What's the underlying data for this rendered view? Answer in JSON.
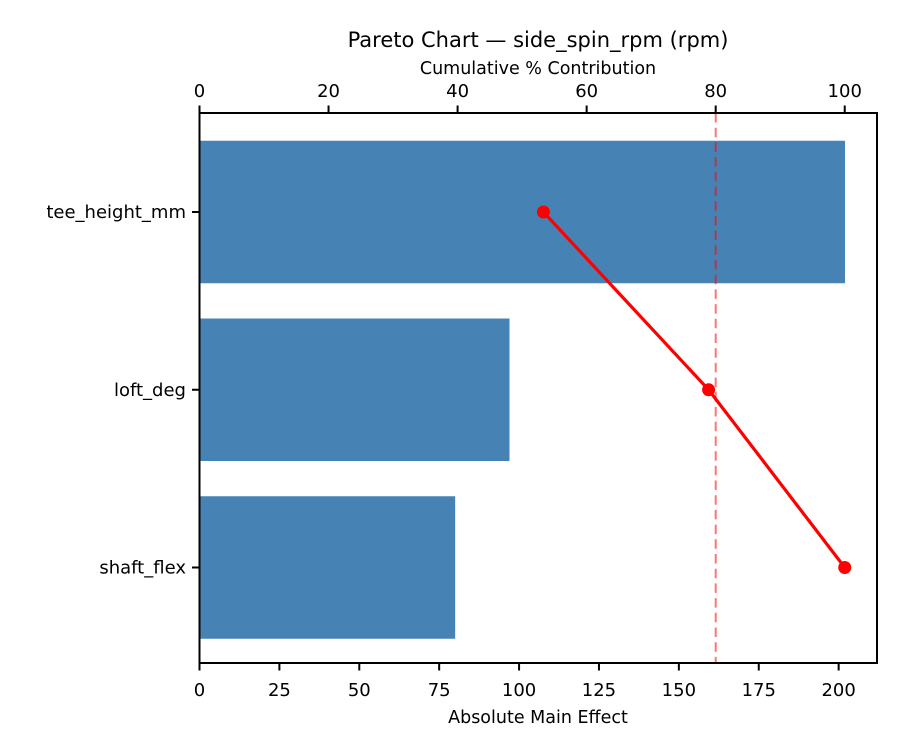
{
  "window": {
    "title": "Pareto Chart — side_spin_rpm (rpm)"
  },
  "colors": {
    "bar": "#4682B4",
    "cumulative_line": "#FF0000",
    "threshold_line": "#FF0000",
    "threshold_opacity": 0.55,
    "spine": "#000000",
    "text": "#000000",
    "background": "#FFFFFF"
  },
  "chart_data": {
    "type": "bar",
    "subtype": "pareto",
    "orientation": "horizontal",
    "title": "Pareto Chart — side_spin_rpm (rpm)",
    "xlabel_top": "Cumulative % Contribution",
    "xlabel_bottom": "Absolute Main Effect",
    "categories": [
      "tee_height_mm",
      "loft_deg",
      "shaft_flex"
    ],
    "series": [
      {
        "name": "Absolute Main Effect",
        "type": "bar",
        "axis": "bottom",
        "values": [
          202,
          97,
          80
        ]
      },
      {
        "name": "Cumulative % Contribution",
        "type": "line",
        "axis": "top",
        "values": [
          53.3,
          78.9,
          100.0
        ]
      }
    ],
    "threshold_pct": 80,
    "xlim_bottom": [
      0,
      212
    ],
    "xticks_bottom": [
      0,
      25,
      50,
      75,
      100,
      125,
      150,
      175,
      200
    ],
    "xlim_top": [
      0,
      105
    ],
    "xticks_top": [
      0,
      20,
      40,
      60,
      80,
      100
    ],
    "grid": false,
    "legend": "none"
  }
}
